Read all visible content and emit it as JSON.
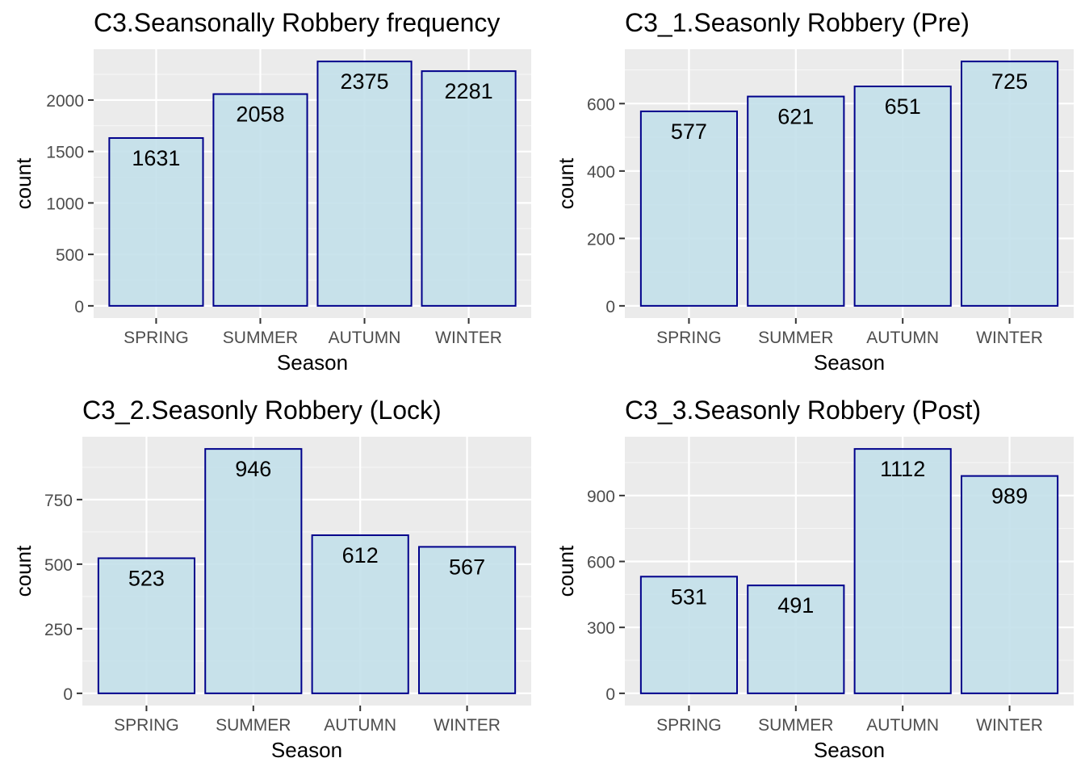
{
  "chart_data": [
    {
      "type": "bar",
      "title": "C3.Seansonally Robbery frequency",
      "xlabel": "Season",
      "ylabel": "count",
      "categories": [
        "SPRING",
        "SUMMER",
        "AUTUMN",
        "WINTER"
      ],
      "values": [
        1631,
        2058,
        2375,
        2281
      ],
      "yticks": [
        0,
        500,
        1000,
        1500,
        2000
      ],
      "ylim": [
        0,
        2375
      ],
      "grid": true,
      "colors": {
        "panel_bg": "#ebebeb",
        "grid": "#ffffff",
        "bar_fill": "#c3e0ea",
        "bar_stroke": "#00008b"
      }
    },
    {
      "type": "bar",
      "title": "C3_1.Seasonly Robbery (Pre)",
      "xlabel": "Season",
      "ylabel": "count",
      "categories": [
        "SPRING",
        "SUMMER",
        "AUTUMN",
        "WINTER"
      ],
      "values": [
        577,
        621,
        651,
        725
      ],
      "yticks": [
        0,
        200,
        400,
        600
      ],
      "ylim": [
        0,
        725
      ],
      "grid": true,
      "colors": {
        "panel_bg": "#ebebeb",
        "grid": "#ffffff",
        "bar_fill": "#c3e0ea",
        "bar_stroke": "#00008b"
      }
    },
    {
      "type": "bar",
      "title": "C3_2.Seasonly Robbery (Lock)",
      "xlabel": "Season",
      "ylabel": "count",
      "categories": [
        "SPRING",
        "SUMMER",
        "AUTUMN",
        "WINTER"
      ],
      "values": [
        523,
        946,
        612,
        567
      ],
      "yticks": [
        0,
        250,
        500,
        750
      ],
      "ylim": [
        0,
        946
      ],
      "grid": true,
      "colors": {
        "panel_bg": "#ebebeb",
        "grid": "#ffffff",
        "bar_fill": "#c3e0ea",
        "bar_stroke": "#00008b"
      }
    },
    {
      "type": "bar",
      "title": "C3_3.Seasonly Robbery (Post)",
      "xlabel": "Season",
      "ylabel": "count",
      "categories": [
        "SPRING",
        "SUMMER",
        "AUTUMN",
        "WINTER"
      ],
      "values": [
        531,
        491,
        1112,
        989
      ],
      "yticks": [
        0,
        300,
        600,
        900
      ],
      "ylim": [
        0,
        1112
      ],
      "grid": true,
      "colors": {
        "panel_bg": "#ebebeb",
        "grid": "#ffffff",
        "bar_fill": "#c3e0ea",
        "bar_stroke": "#00008b"
      }
    }
  ]
}
